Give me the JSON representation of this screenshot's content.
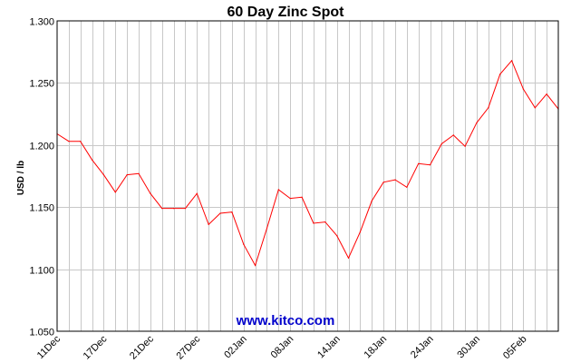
{
  "chart_data": {
    "type": "line",
    "title": "60 Day Zinc Spot",
    "ylabel": "USD / lb",
    "xlabel": "",
    "ylim": [
      1.05,
      1.3
    ],
    "yticks": [
      "1.050",
      "1.100",
      "1.150",
      "1.200",
      "1.250",
      "1.300"
    ],
    "ytick_values": [
      1.05,
      1.1,
      1.15,
      1.2,
      1.25,
      1.3
    ],
    "xticks": [
      "11Dec",
      "17Dec",
      "21Dec",
      "27Dec",
      "02Jan",
      "08Jan",
      "14Jan",
      "18Jan",
      "24Jan",
      "30Jan",
      "05Feb"
    ],
    "xtick_index": [
      0,
      4,
      8,
      12,
      16,
      20,
      24,
      28,
      32,
      36,
      40
    ],
    "grid": true,
    "line_color": "#ff0000",
    "series": [
      {
        "values": [
          1.209,
          1.203,
          1.203,
          1.188,
          1.176,
          1.162,
          1.176,
          1.177,
          1.161,
          1.149,
          1.149,
          1.149,
          1.161,
          1.136,
          1.145,
          1.146,
          1.12,
          1.103,
          1.133,
          1.164,
          1.157,
          1.158,
          1.137,
          1.138,
          1.127,
          1.109,
          1.13,
          1.155,
          1.17,
          1.172,
          1.166,
          1.185,
          1.184,
          1.201,
          1.208,
          1.199,
          1.218,
          1.23,
          1.257,
          1.268,
          1.245,
          1.23,
          1.241,
          1.229
        ]
      }
    ]
  },
  "watermark": "www.kitco.com"
}
